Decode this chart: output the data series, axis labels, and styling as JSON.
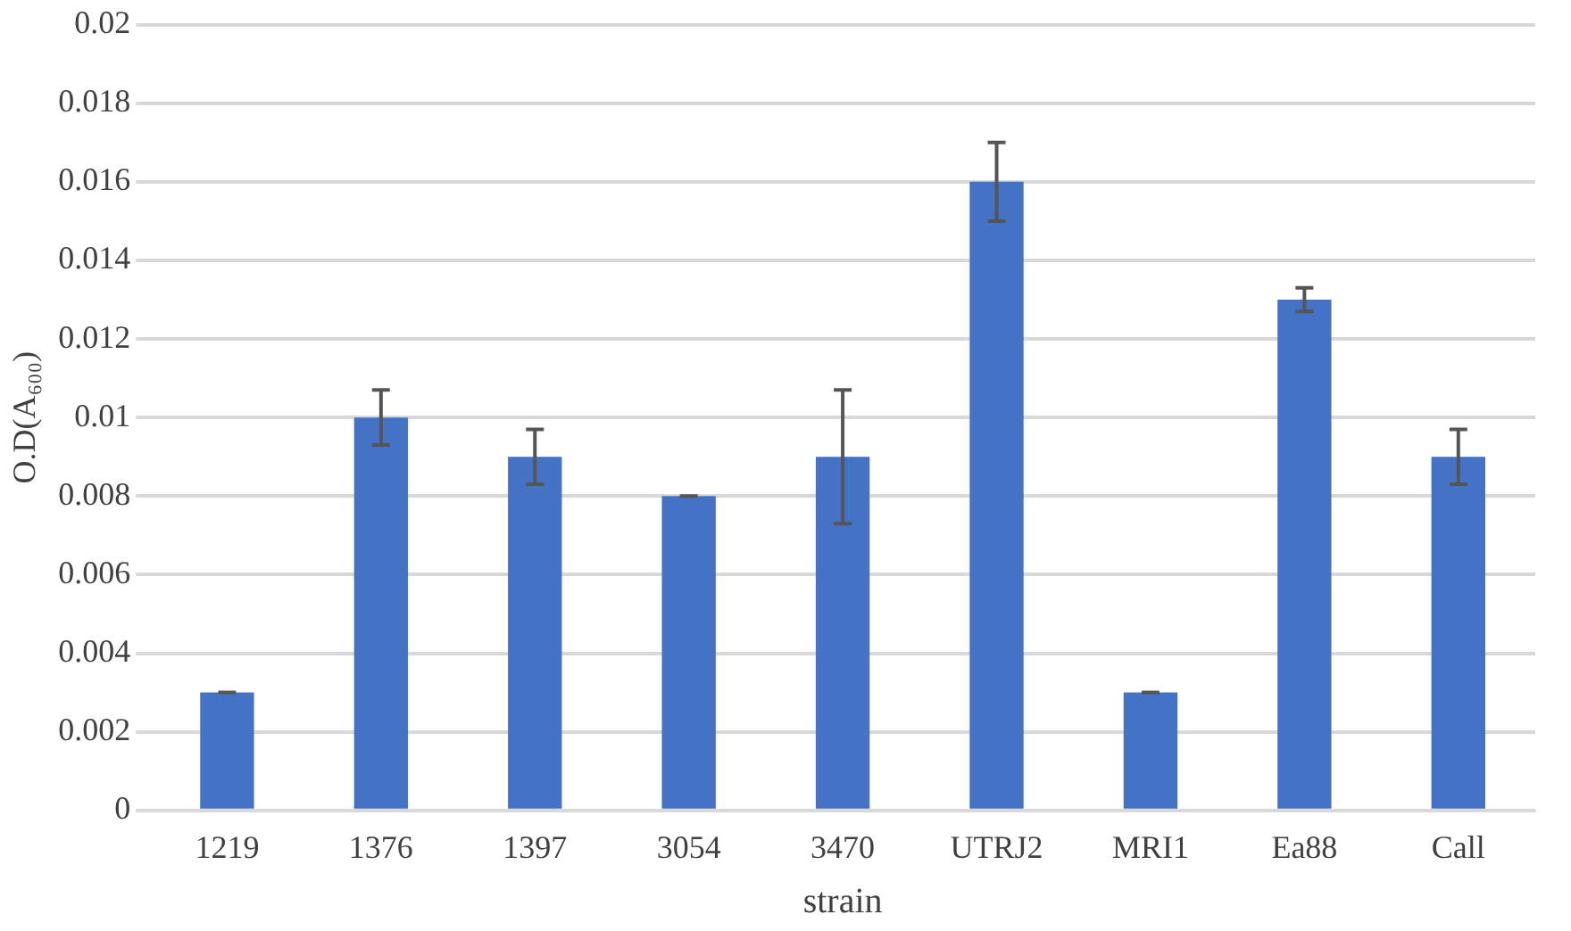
{
  "chart_data": {
    "type": "bar",
    "xlabel": "strain",
    "ylabel": "O.D(A₆₀₀)",
    "categories": [
      "1219",
      "1376",
      "1397",
      "3054",
      "3470",
      "UTRJ2",
      "MRI1",
      "Ea88",
      "Call"
    ],
    "values": [
      0.003,
      0.01,
      0.009,
      0.008,
      0.009,
      0.016,
      0.003,
      0.013,
      0.009
    ],
    "errors": [
      0,
      0.0007,
      0.0007,
      0,
      0.0017,
      0.001,
      0,
      0.0003,
      0.0007
    ],
    "color": "#4472c4",
    "ylim": [
      0,
      0.02
    ],
    "yticks": [
      0,
      0.002,
      0.004,
      0.006,
      0.008,
      0.01,
      0.012,
      0.014,
      0.016,
      0.018,
      0.02
    ],
    "grid": "y"
  }
}
